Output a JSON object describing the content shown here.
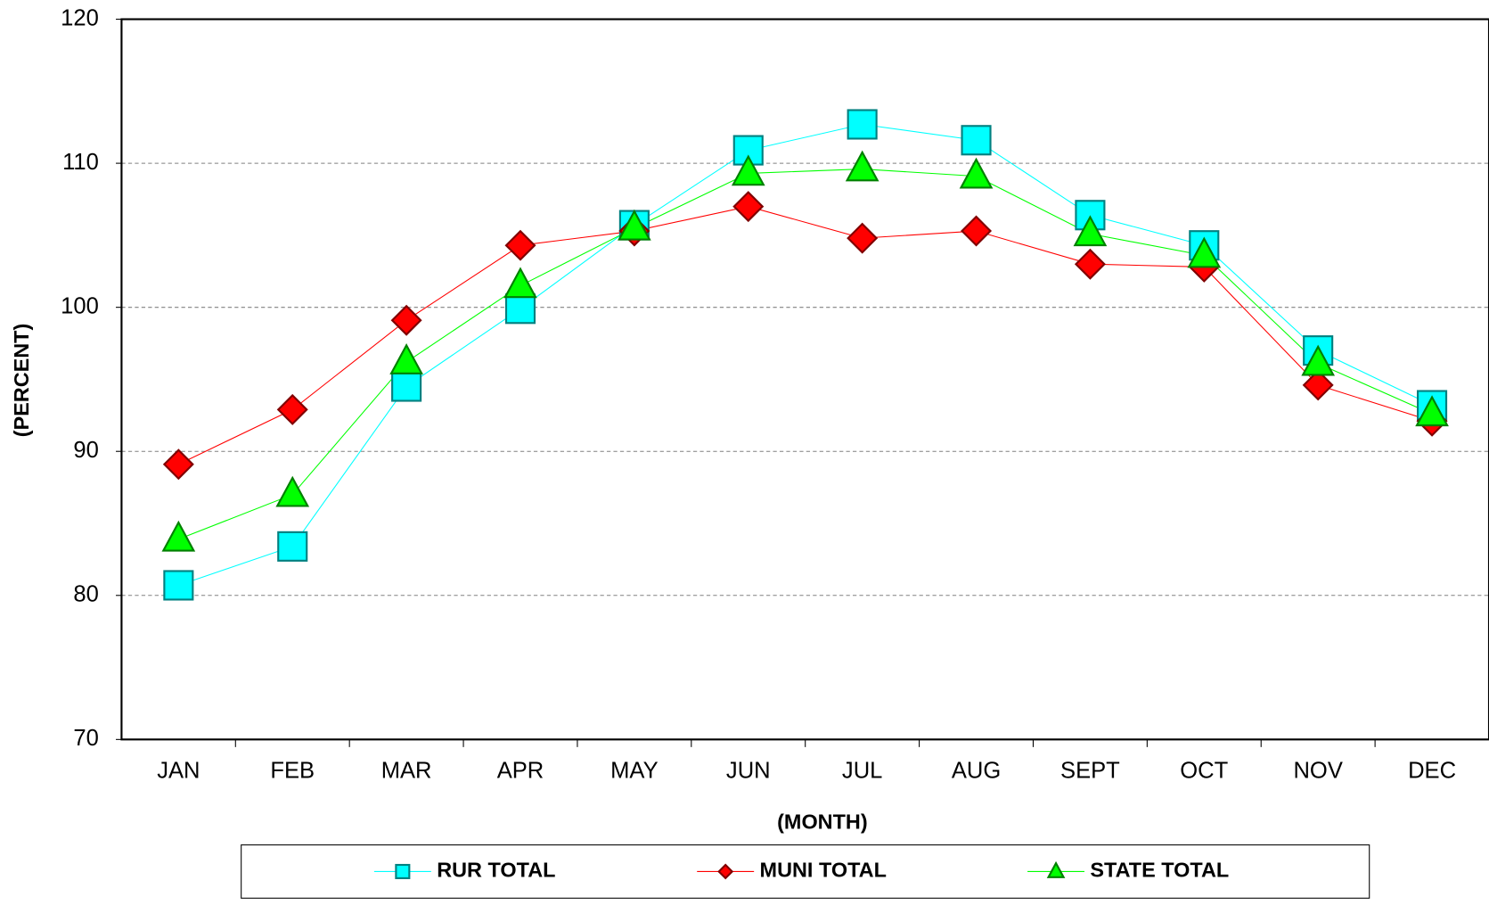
{
  "chart_data": {
    "type": "line",
    "x_label": "(MONTH)",
    "y_label": "(PERCENT)",
    "categories": [
      "JAN",
      "FEB",
      "MAR",
      "APR",
      "MAY",
      "JUN",
      "JUL",
      "AUG",
      "SEPT",
      "OCT",
      "NOV",
      "DEC"
    ],
    "series": [
      {
        "name": "RUR TOTAL",
        "color": "#00ffff",
        "marker": "square",
        "values": [
          80.7,
          83.4,
          94.5,
          99.9,
          105.7,
          110.9,
          112.7,
          111.6,
          106.4,
          104.3,
          97.0,
          93.2
        ]
      },
      {
        "name": "MUNI TOTAL",
        "color": "#ff0000",
        "marker": "diamond",
        "values": [
          89.1,
          92.9,
          99.1,
          104.3,
          105.3,
          107.0,
          104.8,
          105.3,
          103.0,
          102.8,
          94.6,
          92.1
        ]
      },
      {
        "name": "STATE TOTAL",
        "color": "#00ff00",
        "marker": "triangle",
        "values": [
          83.9,
          87.0,
          96.2,
          101.5,
          105.5,
          109.3,
          109.6,
          109.1,
          105.1,
          103.6,
          96.1,
          92.6
        ]
      }
    ],
    "ylim": [
      70,
      120
    ],
    "yticks": [
      70,
      80,
      90,
      100,
      110,
      120
    ],
    "grid": true
  }
}
